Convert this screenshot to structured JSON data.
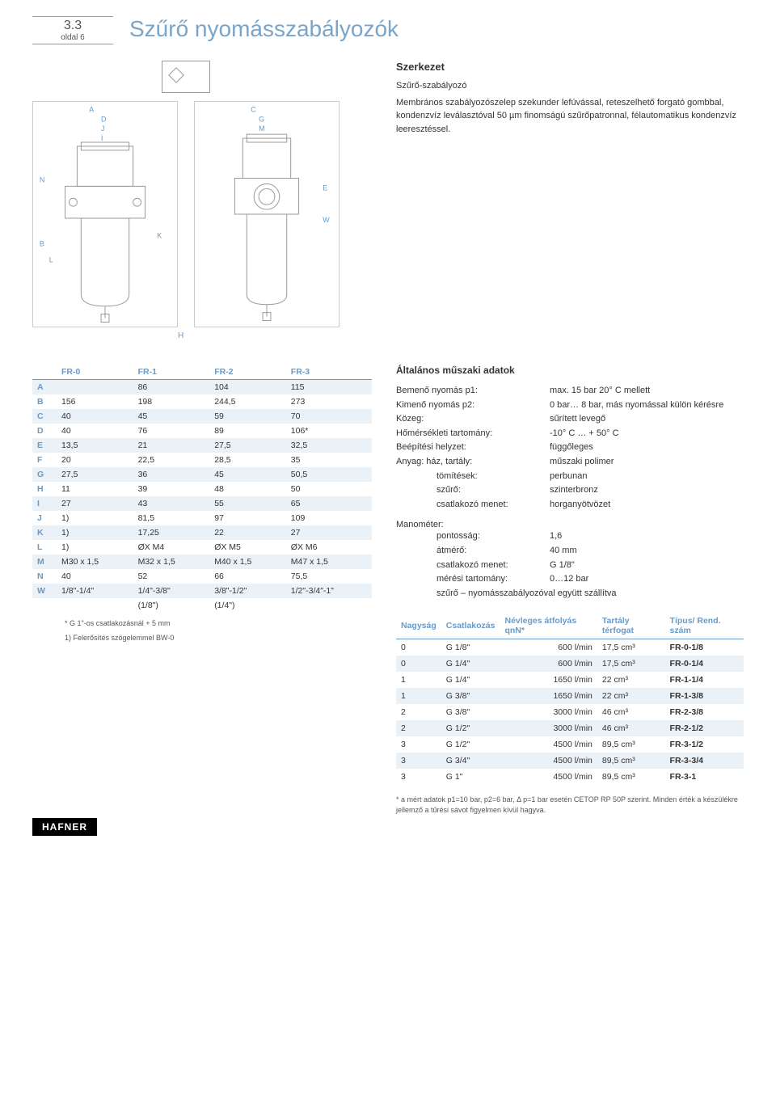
{
  "page_ref": {
    "num": "3.3",
    "sub": "oldal 6"
  },
  "title": "Szűrő nyomásszabályozók",
  "szerkezet": {
    "title": "Szerkezet",
    "subtitle": "Szűrő-szabályozó",
    "body": "Membrános szabályozószelep szekunder lefúvással, reteszelhető forgató gombbal, kondenzvíz leválasztóval 50 µm finomságú szűrőpatronnal, félautomatikus kondenzvíz leeresztéssel."
  },
  "dim_table": {
    "columns": [
      "",
      "FR-0",
      "FR-1",
      "FR-2",
      "FR-3"
    ],
    "rows": [
      [
        "A",
        "",
        "86",
        "104",
        "115"
      ],
      [
        "B",
        "156",
        "198",
        "244,5",
        "273"
      ],
      [
        "C",
        "40",
        "45",
        "59",
        "70"
      ],
      [
        "D",
        "40",
        "76",
        "89",
        "106*"
      ],
      [
        "E",
        "13,5",
        "21",
        "27,5",
        "32,5"
      ],
      [
        "F",
        "20",
        "22,5",
        "28,5",
        "35"
      ],
      [
        "G",
        "27,5",
        "36",
        "45",
        "50,5"
      ],
      [
        "H",
        "11",
        "39",
        "48",
        "50"
      ],
      [
        "I",
        "27",
        "43",
        "55",
        "65"
      ],
      [
        "J",
        "1)",
        "81,5",
        "97",
        "109"
      ],
      [
        "K",
        "1)",
        "17,25",
        "22",
        "27"
      ],
      [
        "L",
        "1)",
        "ØX M4",
        "ØX M5",
        "ØX M6"
      ],
      [
        "M",
        "M30 x 1,5",
        "M32 x 1,5",
        "M40 x 1,5",
        "M47 x 1,5"
      ],
      [
        "N",
        "40",
        "52",
        "66",
        "75,5"
      ],
      [
        "W",
        "1/8\"-1/4\"",
        "1/4\"-3/8\"",
        "3/8\"-1/2\"",
        "1/2\"-3/4\"-1\""
      ],
      [
        "",
        "",
        "(1/8\")",
        "(1/4\")",
        ""
      ]
    ],
    "stripe_even_bg": "#eaf1f7",
    "head_color": "#6b9ac4",
    "footnotes": [
      "* G 1\"-os csatlakozásnál + 5 mm",
      "1) Felerősítés szögelemmel BW-0"
    ]
  },
  "general_tech": {
    "title": "Általános műszaki adatok",
    "lines": [
      {
        "label": "Bemenő nyomás p1:",
        "value": "max. 15 bar  20° C  mellett"
      },
      {
        "label": "Kimenő nyomás p2:",
        "value": "0 bar… 8 bar, más nyomással külön kérésre"
      },
      {
        "label": "Közeg:",
        "value": "sűrített levegő"
      },
      {
        "label": "Hőmérsékleti tartomány:",
        "value": "-10° C … + 50° C"
      },
      {
        "label": "Beépítési helyzet:",
        "value": "függőleges"
      },
      {
        "label": "Anyag: ház, tartály:",
        "value": "műszaki polimer"
      },
      {
        "label": "tömítések:",
        "value": "perbunan",
        "indent": true
      },
      {
        "label": "szűrő:",
        "value": "szinterbronz",
        "indent": true
      },
      {
        "label": "csatlakozó menet:",
        "value": "horganyötvözet",
        "indent": true
      }
    ],
    "mano_title": "Manométer:",
    "mano_lines": [
      {
        "label": "pontosság:",
        "value": "1,6"
      },
      {
        "label": "átmérő:",
        "value": "40 mm"
      },
      {
        "label": "csatlakozó menet:",
        "value": "G 1/8\""
      },
      {
        "label": "mérési tartomány:",
        "value": "0…12 bar"
      }
    ],
    "mano_note": "szűrő – nyomásszabályozóval együtt szállítva"
  },
  "order_table": {
    "columns": [
      "Nagyság",
      "Csatlakozás",
      "Névleges átfolyás qnN*",
      "Tartály térfogat",
      "Típus/ Rend. szám"
    ],
    "rows": [
      [
        "0",
        "G 1/8\"",
        "600 l/min",
        "17,5 cm³",
        "FR-0-1/8"
      ],
      [
        "0",
        "G 1/4\"",
        "600 l/min",
        "17,5 cm³",
        "FR-0-1/4"
      ],
      [
        "1",
        "G 1/4\"",
        "1650 l/min",
        "22   cm³",
        "FR-1-1/4"
      ],
      [
        "1",
        "G 3/8\"",
        "1650 l/min",
        "22   cm³",
        "FR-1-3/8"
      ],
      [
        "2",
        "G 3/8\"",
        "3000 l/min",
        "46   cm³",
        "FR-2-3/8"
      ],
      [
        "2",
        "G 1/2\"",
        "3000 l/min",
        "46   cm³",
        "FR-2-1/2"
      ],
      [
        "3",
        "G 1/2\"",
        "4500 l/min",
        "89,5 cm³",
        "FR-3-1/2"
      ],
      [
        "3",
        "G 3/4\"",
        "4500 l/min",
        "89,5 cm³",
        "FR-3-3/4"
      ],
      [
        "3",
        "G 1\"",
        "4500 l/min",
        "89,5 cm³",
        "FR-3-1"
      ]
    ],
    "stripe_even_bg": "#eaf1f7"
  },
  "disclaimer": "* a mért adatok p1=10 bar, p2=6 bar, Δ p=1 bar esetén CETOP RP 50P szerint. Minden érték a készülékre jellemző a tűrési sávot figyelmen kívül hagyva.",
  "brand": "HAFNER",
  "drawing_labels": {
    "left_top": [
      "A",
      "D",
      "J",
      "I"
    ],
    "left_side": [
      "B",
      "N",
      "L",
      "K"
    ],
    "right_top": [
      "C",
      "G",
      "M"
    ],
    "right_side": [
      "E",
      "W",
      "H"
    ]
  }
}
